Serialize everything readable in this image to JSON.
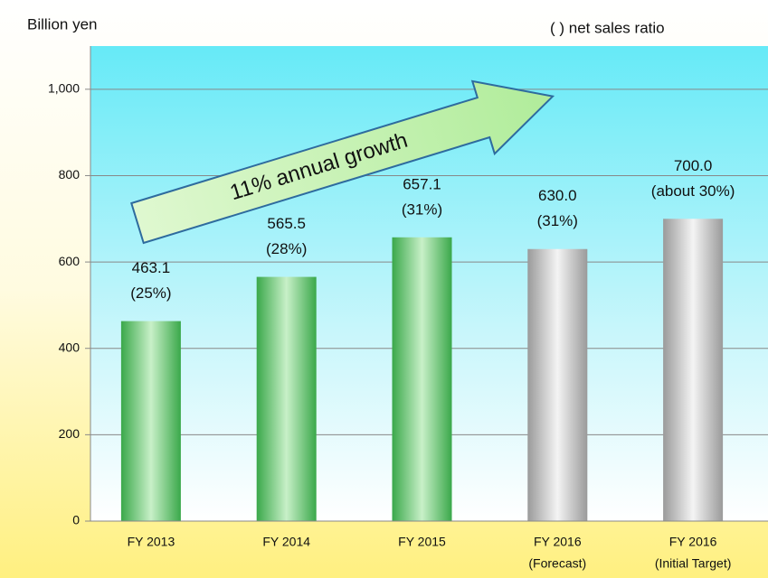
{
  "chart_data": {
    "type": "bar",
    "y_axis_label": "Billion yen",
    "legend_note": "(    ) net sales ratio",
    "annotation": "11% annual growth",
    "categories": [
      "FY 2013",
      "FY 2014",
      "FY 2015",
      "FY 2016",
      "FY 2016"
    ],
    "category_notes": [
      null,
      null,
      null,
      "(Forecast)",
      "(Initial Target)"
    ],
    "values": [
      463.1,
      565.5,
      657.1,
      630.0,
      700.0
    ],
    "value_labels": [
      "463.1",
      "565.5",
      "657.1",
      "630.0",
      "700.0"
    ],
    "ratio_labels": [
      "(25%)",
      "(28%)",
      "(31%)",
      "(31%)",
      "(about 30%)"
    ],
    "colors": [
      "green",
      "green",
      "green",
      "gray",
      "gray"
    ],
    "ylim": [
      0,
      1100
    ],
    "yticks": [
      0,
      200,
      400,
      600,
      800,
      {
        "value": 1000,
        "label": "1,000"
      }
    ],
    "grid": true
  }
}
